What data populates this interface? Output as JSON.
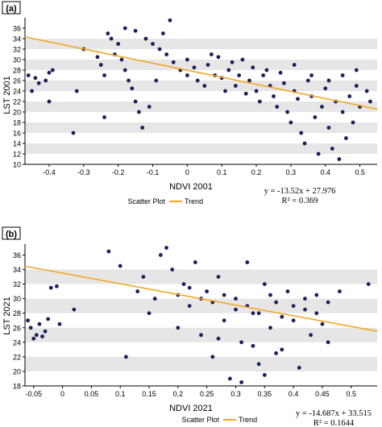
{
  "panels": [
    {
      "panel_label": "(a)",
      "equation": "y = -13.52x + 27.976",
      "r2": "R² = 0.369",
      "legend_scatter": "Scatter Plot",
      "legend_trend": "Trend"
    },
    {
      "panel_label": "(b)",
      "equation": "y = -14.687x + 33.515",
      "r2": "R² = 0.1644",
      "legend_scatter": "Scatter Plot",
      "legend_trend": "Trend"
    }
  ],
  "colors": {
    "point": "#1a1f5e",
    "trend": "#f5a623",
    "band": "#e6e6e6",
    "axis": "#000000"
  },
  "chart_data": [
    {
      "type": "scatter",
      "xlabel": "NDVI 2001",
      "ylabel": "LST 2001",
      "xlim": [
        -0.47,
        0.55
      ],
      "ylim": [
        10,
        38
      ],
      "xticks": [
        -0.4,
        -0.3,
        -0.2,
        -0.1,
        0,
        0.1,
        0.2,
        0.3,
        0.4,
        0.5
      ],
      "yticks": [
        10,
        12,
        14,
        16,
        18,
        20,
        22,
        24,
        26,
        28,
        30,
        32,
        34,
        36
      ],
      "trend": {
        "slope": -13.52,
        "intercept": 27.976
      },
      "legend": [
        "Scatter Plot",
        "Trend"
      ],
      "grid": "alternating horizontal bands",
      "series": [
        {
          "name": "Scatter Plot",
          "points": [
            [
              -0.46,
              27
            ],
            [
              -0.45,
              24
            ],
            [
              -0.44,
              26.5
            ],
            [
              -0.43,
              25.5
            ],
            [
              -0.41,
              26
            ],
            [
              -0.4,
              27.5
            ],
            [
              -0.39,
              28
            ],
            [
              -0.4,
              22
            ],
            [
              -0.33,
              16
            ],
            [
              -0.32,
              24
            ],
            [
              -0.3,
              32
            ],
            [
              -0.26,
              30.5
            ],
            [
              -0.25,
              29
            ],
            [
              -0.24,
              27
            ],
            [
              -0.24,
              19
            ],
            [
              -0.23,
              35
            ],
            [
              -0.22,
              34
            ],
            [
              -0.2,
              33
            ],
            [
              -0.21,
              31
            ],
            [
              -0.19,
              30
            ],
            [
              -0.18,
              28
            ],
            [
              -0.17,
              26
            ],
            [
              -0.16,
              24.5
            ],
            [
              -0.15,
              22
            ],
            [
              -0.14,
              20
            ],
            [
              -0.13,
              17
            ],
            [
              -0.18,
              36
            ],
            [
              -0.15,
              35.5
            ],
            [
              -0.12,
              34
            ],
            [
              -0.1,
              33
            ],
            [
              -0.08,
              32
            ],
            [
              -0.06,
              31
            ],
            [
              -0.05,
              37.5
            ],
            [
              -0.04,
              29.5
            ],
            [
              -0.02,
              28
            ],
            [
              0,
              30
            ],
            [
              0,
              27
            ],
            [
              0.02,
              28.5
            ],
            [
              0.03,
              26
            ],
            [
              0.05,
              25
            ],
            [
              0.06,
              29
            ],
            [
              0.08,
              27
            ],
            [
              0.1,
              26.5
            ],
            [
              0.11,
              24
            ],
            [
              0.12,
              28
            ],
            [
              0.14,
              25
            ],
            [
              0.15,
              27
            ],
            [
              0.17,
              23.5
            ],
            [
              0.18,
              26
            ],
            [
              0.2,
              24
            ],
            [
              0.21,
              22
            ],
            [
              0.22,
              27
            ],
            [
              0.24,
              25
            ],
            [
              0.25,
              23
            ],
            [
              0.26,
              21
            ],
            [
              0.28,
              25.5
            ],
            [
              0.29,
              20
            ],
            [
              0.3,
              18
            ],
            [
              0.31,
              24
            ],
            [
              0.32,
              22.5
            ],
            [
              0.33,
              16
            ],
            [
              0.34,
              14
            ],
            [
              0.35,
              26
            ],
            [
              0.36,
              23
            ],
            [
              0.37,
              19
            ],
            [
              0.38,
              12
            ],
            [
              0.39,
              21
            ],
            [
              0.4,
              24.5
            ],
            [
              0.41,
              17
            ],
            [
              0.42,
              13
            ],
            [
              0.43,
              22
            ],
            [
              0.44,
              11
            ],
            [
              0.45,
              20
            ],
            [
              0.46,
              15
            ],
            [
              0.47,
              23
            ],
            [
              0.48,
              18
            ],
            [
              0.49,
              25
            ],
            [
              0.5,
              21
            ],
            [
              0.52,
              24
            ],
            [
              0.53,
              22
            ],
            [
              -0.07,
              35
            ],
            [
              -0.09,
              26
            ],
            [
              -0.11,
              21
            ],
            [
              0.07,
              31
            ],
            [
              0.09,
              30.5
            ],
            [
              0.13,
              29.5
            ],
            [
              0.16,
              30
            ],
            [
              0.19,
              28.5
            ],
            [
              0.23,
              28
            ],
            [
              0.27,
              27.5
            ],
            [
              0.31,
              29
            ],
            [
              0.36,
              27
            ],
            [
              0.41,
              26
            ],
            [
              0.45,
              27
            ],
            [
              0.49,
              28
            ]
          ]
        }
      ]
    },
    {
      "type": "scatter",
      "xlabel": "NDVI 2021",
      "ylabel": "LST 2021",
      "xlim": [
        -0.065,
        0.545
      ],
      "ylim": [
        18,
        37.5
      ],
      "xticks": [
        -0.05,
        0,
        0.05,
        0.1,
        0.15,
        0.2,
        0.25,
        0.3,
        0.35,
        0.4,
        0.45,
        0.5
      ],
      "yticks": [
        18,
        20,
        22,
        24,
        26,
        28,
        30,
        32,
        34,
        36
      ],
      "trend": {
        "slope": -14.687,
        "intercept": 33.515
      },
      "legend": [
        "Scatter Plot",
        "Trend"
      ],
      "grid": "alternating horizontal bands",
      "series": [
        {
          "name": "Scatter Plot",
          "points": [
            [
              -0.06,
              27
            ],
            [
              -0.055,
              26
            ],
            [
              -0.05,
              24.5
            ],
            [
              -0.045,
              25
            ],
            [
              -0.04,
              26.5
            ],
            [
              -0.035,
              24.8
            ],
            [
              -0.03,
              25.5
            ],
            [
              -0.025,
              27.2
            ],
            [
              -0.02,
              31.5
            ],
            [
              -0.01,
              31.7
            ],
            [
              -0.005,
              26.5
            ],
            [
              0.02,
              28.5
            ],
            [
              0.08,
              36.5
            ],
            [
              0.1,
              34.5
            ],
            [
              0.11,
              22
            ],
            [
              0.13,
              31
            ],
            [
              0.14,
              33
            ],
            [
              0.15,
              28
            ],
            [
              0.16,
              30
            ],
            [
              0.17,
              36
            ],
            [
              0.18,
              37
            ],
            [
              0.19,
              34
            ],
            [
              0.2,
              26
            ],
            [
              0.21,
              32
            ],
            [
              0.22,
              29
            ],
            [
              0.23,
              35
            ],
            [
              0.24,
              25
            ],
            [
              0.25,
              31
            ],
            [
              0.26,
              22
            ],
            [
              0.27,
              33
            ],
            [
              0.28,
              27
            ],
            [
              0.29,
              19
            ],
            [
              0.3,
              30
            ],
            [
              0.31,
              24
            ],
            [
              0.32,
              35
            ],
            [
              0.33,
              28
            ],
            [
              0.34,
              21
            ],
            [
              0.35,
              32
            ],
            [
              0.36,
              26
            ],
            [
              0.37,
              29.5
            ],
            [
              0.38,
              23
            ],
            [
              0.39,
              31
            ],
            [
              0.4,
              27
            ],
            [
              0.41,
              20.5
            ],
            [
              0.42,
              30
            ],
            [
              0.43,
              25
            ],
            [
              0.44,
              28
            ],
            [
              0.45,
              26.5
            ],
            [
              0.46,
              24
            ],
            [
              0.48,
              31
            ],
            [
              0.53,
              32
            ],
            [
              0.2,
              30.5
            ],
            [
              0.22,
              31.5
            ],
            [
              0.24,
              30
            ],
            [
              0.26,
              29.5
            ],
            [
              0.28,
              30.5
            ],
            [
              0.3,
              28.5
            ],
            [
              0.32,
              29
            ],
            [
              0.34,
              28
            ],
            [
              0.36,
              30.5
            ],
            [
              0.38,
              27.5
            ],
            [
              0.4,
              29
            ],
            [
              0.42,
              28.5
            ],
            [
              0.44,
              30.5
            ],
            [
              0.46,
              29.5
            ],
            [
              0.31,
              18.5
            ],
            [
              0.35,
              19.5
            ],
            [
              0.33,
              23.5
            ],
            [
              0.27,
              24.5
            ],
            [
              0.37,
              22.5
            ]
          ]
        }
      ]
    }
  ]
}
